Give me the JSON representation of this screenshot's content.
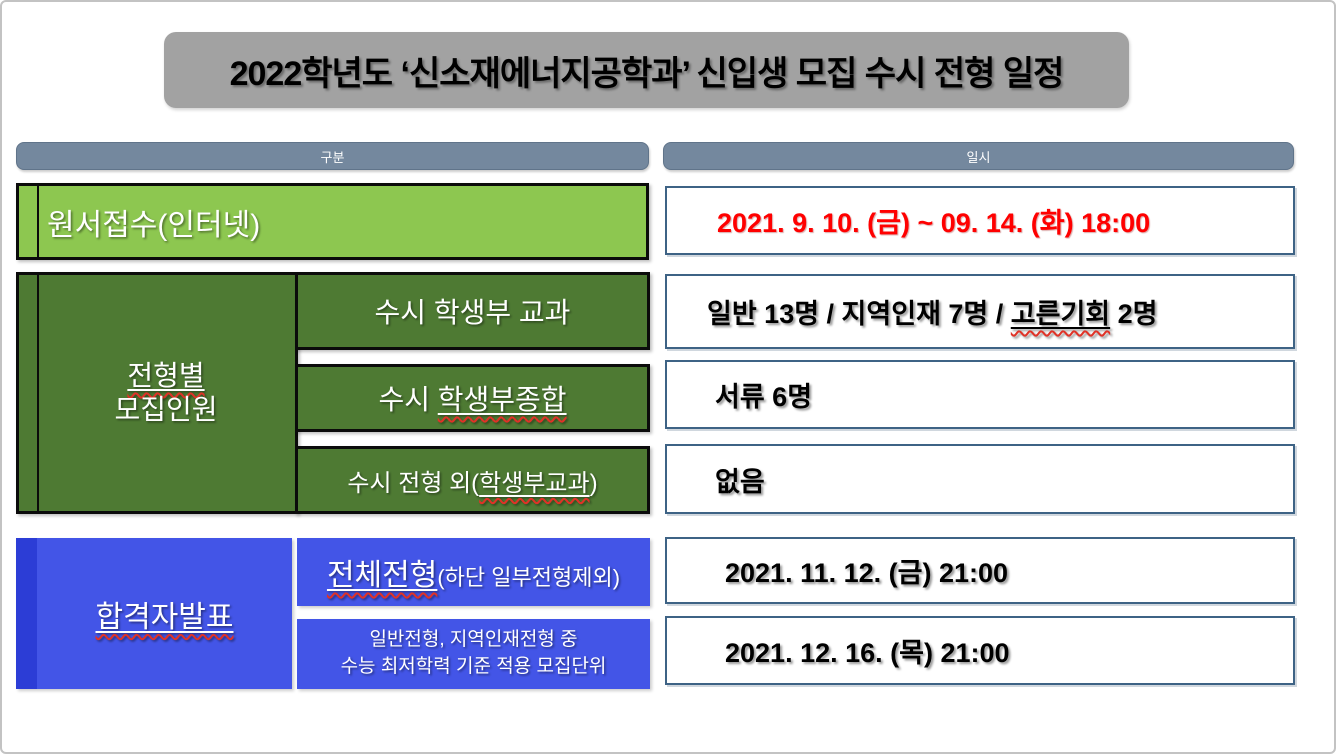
{
  "title": "2022학년도 ‘신소재에너지공학과’ 신입생 모집 수시 전형 일정",
  "headers": {
    "left": "구분",
    "right": "일시"
  },
  "application": {
    "label": "원서접수(인터넷)",
    "date": "2021. 9. 10. (금) ~ 09. 14. (화) 18:00"
  },
  "quota": {
    "group_label": {
      "line1": "전형별",
      "line2": "모집인원"
    },
    "row1": {
      "label": "수시 학생부 교과",
      "value_pre": "일반 13명 / 지역인재 7명 / ",
      "value_marked": "고른기회",
      "value_post": " 2명"
    },
    "row2": {
      "label_pre": "수시 ",
      "label_marked": "학생부종합",
      "value": "서류 6명"
    },
    "row3": {
      "label_pre": "수시 전형 외(",
      "label_marked": "학생부교과",
      "label_post": ")",
      "value": "없음"
    }
  },
  "announcement": {
    "group_label": "합격자발표",
    "row1": {
      "label_main": "전체전형",
      "label_note": "(하단 일부전형제외)",
      "value": "2021. 11. 12. (금) 21:00"
    },
    "row2": {
      "label_line1": "일반전형, 지역인재전형 중",
      "label_line2": "수능 최저학력 기준 적용 모집단위",
      "value": "2021. 12. 16. (목) 21:00"
    }
  },
  "colors": {
    "title_gray": "#A2A2A2",
    "header_slate": "#74889E",
    "light_green": "#8DC750",
    "dark_green": "#4E7A33",
    "blue": "#4355E7",
    "dark_blue_strip": "#2C3DD6",
    "date_red": "#FF0000",
    "value_box_border": "#3E6385",
    "spellcheck_red": "#E03227"
  }
}
